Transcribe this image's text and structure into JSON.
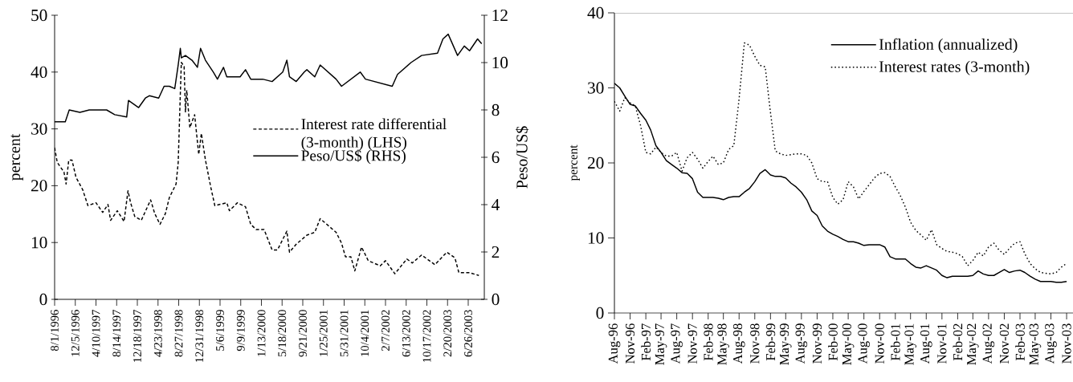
{
  "chart_data": [
    {
      "type": "line",
      "ylabel": "percent",
      "y2label": "Peso/US$",
      "legend": "right",
      "xlim": [
        "1996-08-01",
        "2003-10-02"
      ],
      "ylim": [
        0,
        50
      ],
      "yticks": [
        0,
        10,
        20,
        30,
        40,
        50
      ],
      "y2lim": [
        0,
        12
      ],
      "y2ticks": [
        0,
        2,
        4,
        6,
        8,
        10,
        12
      ],
      "xticks": [
        {
          "value": "1996-08-01",
          "label": "8/1/1996"
        },
        {
          "value": "1996-12-05",
          "label": "12/5/1996"
        },
        {
          "value": "1997-04-10",
          "label": "4/10/1997"
        },
        {
          "value": "1997-08-14",
          "label": "8/14/1997"
        },
        {
          "value": "1997-12-18",
          "label": "12/18/1997"
        },
        {
          "value": "1998-04-23",
          "label": "4/23/1998"
        },
        {
          "value": "1998-08-27",
          "label": "8/27/1998"
        },
        {
          "value": "1998-12-31",
          "label": "12/31/1998"
        },
        {
          "value": "1999-05-06",
          "label": "5/6/1999"
        },
        {
          "value": "1999-09-09",
          "label": "9/9/1999"
        },
        {
          "value": "2000-01-13",
          "label": "1/13/2000"
        },
        {
          "value": "2000-05-18",
          "label": "5/18/2000"
        },
        {
          "value": "2000-09-21",
          "label": "9/21/2000"
        },
        {
          "value": "2001-01-25",
          "label": "1/25/2001"
        },
        {
          "value": "2001-05-31",
          "label": "5/31/2001"
        },
        {
          "value": "2001-10-04",
          "label": "10/4/2001"
        },
        {
          "value": "2002-02-07",
          "label": "2/7/2002"
        },
        {
          "value": "2002-06-13",
          "label": "6/13/2002"
        },
        {
          "value": "2002-10-17",
          "label": "10/17/2002"
        },
        {
          "value": "2003-02-20",
          "label": "2/20/2003"
        },
        {
          "value": "2003-06-26",
          "label": "6/26/2003"
        }
      ],
      "series": [
        {
          "name": "Interest rate differential (3-month) (LHS)",
          "color": "#000000",
          "line_style": "dashed",
          "axis": "y",
          "x": [
            "1996-08-01",
            "1996-08-17",
            "1996-09-27",
            "1996-10-10",
            "1996-10-26",
            "1996-11-15",
            "1996-12-09",
            "1997-01-19",
            "1997-02-20",
            "1997-04-10",
            "1997-05-21",
            "1997-06-22",
            "1997-07-08",
            "1997-08-18",
            "1997-09-28",
            "1997-10-22",
            "1997-11-07",
            "1997-12-02",
            "1998-01-11",
            "1998-03-09",
            "1998-04-03",
            "1998-05-05",
            "1998-06-07",
            "1998-07-01",
            "1998-08-11",
            "1998-08-24",
            "1998-09-04",
            "1998-09-12",
            "1998-09-29",
            "1998-10-07",
            "1998-10-15",
            "1998-11-03",
            "1998-12-02",
            "1998-12-27",
            "1999-01-12",
            "1999-02-06",
            "1999-03-10",
            "1999-04-04",
            "1999-06-16",
            "1999-07-02",
            "1999-08-20",
            "1999-10-08",
            "1999-11-09",
            "1999-12-12",
            "2000-01-29",
            "2000-03-18",
            "2000-04-20",
            "2000-06-16",
            "2000-07-02",
            "2000-08-12",
            "2000-10-16",
            "2000-12-03",
            "2001-01-05",
            "2001-04-12",
            "2001-05-15",
            "2001-06-08",
            "2001-07-11",
            "2001-08-04",
            "2001-09-14",
            "2001-10-25",
            "2002-01-06",
            "2002-02-07",
            "2002-04-05",
            "2002-06-17",
            "2002-07-20",
            "2002-09-15",
            "2002-12-05",
            "2003-02-16",
            "2003-04-06",
            "2003-04-30",
            "2003-07-04",
            "2003-08-30"
          ],
          "values": [
            26.7,
            24.1,
            22.4,
            20.3,
            24.5,
            24.5,
            21.5,
            19.3,
            16.5,
            17.0,
            15.3,
            16.7,
            13.9,
            15.6,
            13.7,
            19.1,
            17.0,
            14.6,
            13.9,
            17.5,
            15.1,
            13.2,
            15.1,
            17.9,
            20.3,
            24.1,
            34.4,
            41.7,
            41.0,
            33.0,
            36.8,
            30.2,
            32.5,
            25.5,
            29.2,
            24.5,
            19.8,
            16.5,
            17.0,
            15.6,
            17.0,
            16.3,
            13.2,
            12.3,
            12.3,
            8.7,
            8.7,
            12.0,
            8.3,
            9.7,
            11.3,
            11.8,
            14.2,
            11.8,
            9.9,
            7.5,
            7.5,
            5.0,
            9.2,
            6.8,
            5.9,
            6.8,
            4.5,
            7.1,
            6.4,
            7.8,
            6.1,
            8.3,
            7.3,
            4.7,
            4.7,
            4.2
          ]
        },
        {
          "name": "Peso/US$ (RHS)",
          "color": "#000000",
          "line_style": "solid",
          "axis": "y2",
          "x": [
            "1996-08-01",
            "1996-10-05",
            "1996-10-29",
            "1997-01-02",
            "1997-02-28",
            "1997-06-14",
            "1997-08-02",
            "1997-10-14",
            "1997-10-25",
            "1997-12-26",
            "1998-02-05",
            "1998-03-01",
            "1998-04-27",
            "1998-05-30",
            "1998-07-01",
            "1998-08-03",
            "1998-08-24",
            "1998-09-06",
            "1998-09-12",
            "1998-10-07",
            "1998-11-16",
            "1998-12-19",
            "1999-01-07",
            "1999-02-06",
            "1999-03-26",
            "1999-04-20",
            "1999-05-27",
            "1999-06-16",
            "1999-09-05",
            "1999-10-08",
            "1999-11-09",
            "2000-01-21",
            "2000-03-18",
            "2000-05-22",
            "2000-06-16",
            "2000-07-02",
            "2000-08-12",
            "2000-09-30",
            "2000-10-16",
            "2000-12-03",
            "2001-01-05",
            "2001-04-12",
            "2001-05-15",
            "2001-09-06",
            "2001-10-08",
            "2002-03-20",
            "2002-04-21",
            "2002-07-12",
            "2002-09-15",
            "2002-12-21",
            "2003-01-23",
            "2003-02-24",
            "2003-04-22",
            "2003-06-02",
            "2003-07-04",
            "2003-08-22",
            "2003-09-16"
          ],
          "values": [
            7.5,
            7.5,
            8.0,
            7.9,
            8.0,
            8.0,
            7.8,
            7.7,
            8.4,
            8.1,
            8.5,
            8.6,
            8.5,
            9.0,
            9.0,
            8.9,
            9.9,
            10.6,
            10.2,
            10.3,
            10.1,
            9.8,
            10.6,
            10.1,
            9.6,
            9.3,
            9.8,
            9.4,
            9.4,
            9.7,
            9.3,
            9.3,
            9.2,
            9.6,
            10.1,
            9.4,
            9.2,
            9.6,
            9.7,
            9.4,
            9.9,
            9.3,
            9.0,
            9.6,
            9.3,
            9.0,
            9.5,
            10.0,
            10.3,
            10.4,
            11.0,
            11.2,
            10.3,
            10.7,
            10.5,
            11.0,
            10.8
          ]
        }
      ]
    },
    {
      "type": "line",
      "ylabel": "percent",
      "legend": "top right",
      "xlim": [
        "1996-08",
        "2004-01"
      ],
      "ylim": [
        0,
        40
      ],
      "yticks": [
        0,
        10,
        20,
        30,
        40
      ],
      "xticks": [
        {
          "value": "1996-08",
          "label": "Aug-96"
        },
        {
          "value": "1996-11",
          "label": "Nov-96"
        },
        {
          "value": "1997-02",
          "label": "Feb-97"
        },
        {
          "value": "1997-05",
          "label": "May-97"
        },
        {
          "value": "1997-08",
          "label": "Aug-97"
        },
        {
          "value": "1997-11",
          "label": "Nov-97"
        },
        {
          "value": "1998-02",
          "label": "Feb-98"
        },
        {
          "value": "1998-05",
          "label": "May-98"
        },
        {
          "value": "1998-08",
          "label": "Aug-98"
        },
        {
          "value": "1998-11",
          "label": "Nov-98"
        },
        {
          "value": "1999-02",
          "label": "Feb-99"
        },
        {
          "value": "1999-05",
          "label": "May-99"
        },
        {
          "value": "1999-08",
          "label": "Aug-99"
        },
        {
          "value": "1999-11",
          "label": "Nov-99"
        },
        {
          "value": "2000-02",
          "label": "Feb-00"
        },
        {
          "value": "2000-05",
          "label": "May-00"
        },
        {
          "value": "2000-08",
          "label": "Aug-00"
        },
        {
          "value": "2000-11",
          "label": "Nov-00"
        },
        {
          "value": "2001-02",
          "label": "Feb-01"
        },
        {
          "value": "2001-05",
          "label": "May-01"
        },
        {
          "value": "2001-08",
          "label": "Aug-01"
        },
        {
          "value": "2001-11",
          "label": "Nov-01"
        },
        {
          "value": "2002-02",
          "label": "Feb-02"
        },
        {
          "value": "2002-05",
          "label": "May-02"
        },
        {
          "value": "2002-08",
          "label": "Aug-02"
        },
        {
          "value": "2002-11",
          "label": "Nov-02"
        },
        {
          "value": "2003-02",
          "label": "Feb-03"
        },
        {
          "value": "2003-05",
          "label": "May-03"
        },
        {
          "value": "2003-08",
          "label": "Aug-03"
        },
        {
          "value": "2003-11",
          "label": "Nov-03"
        }
      ],
      "x": [
        "1996-08",
        "1996-09",
        "1996-10",
        "1996-11",
        "1996-12",
        "1997-01",
        "1997-02",
        "1997-03",
        "1997-04",
        "1997-05",
        "1997-06",
        "1997-07",
        "1997-08",
        "1997-09",
        "1997-10",
        "1997-11",
        "1997-12",
        "1998-01",
        "1998-02",
        "1998-03",
        "1998-04",
        "1998-05",
        "1998-06",
        "1998-07",
        "1998-08",
        "1998-09",
        "1998-10",
        "1998-11",
        "1998-12",
        "1999-01",
        "1999-02",
        "1999-03",
        "1999-04",
        "1999-05",
        "1999-06",
        "1999-07",
        "1999-08",
        "1999-09",
        "1999-10",
        "1999-11",
        "1999-12",
        "2000-01",
        "2000-02",
        "2000-03",
        "2000-04",
        "2000-05",
        "2000-06",
        "2000-07",
        "2000-08",
        "2000-09",
        "2000-10",
        "2000-11",
        "2000-12",
        "2001-01",
        "2001-02",
        "2001-03",
        "2001-04",
        "2001-05",
        "2001-06",
        "2001-07",
        "2001-08",
        "2001-09",
        "2001-10",
        "2001-11",
        "2001-12",
        "2002-01",
        "2002-02",
        "2002-03",
        "2002-04",
        "2002-05",
        "2002-06",
        "2002-07",
        "2002-08",
        "2002-09",
        "2002-10",
        "2002-11",
        "2002-12",
        "2003-01",
        "2003-02",
        "2003-03",
        "2003-04",
        "2003-05",
        "2003-06",
        "2003-07",
        "2003-08",
        "2003-09",
        "2003-10",
        "2003-11"
      ],
      "series": [
        {
          "name": "Inflation (annualized)",
          "color": "#000000",
          "line_style": "solid",
          "values": [
            30.6,
            30.0,
            28.9,
            27.8,
            27.6,
            26.6,
            25.7,
            24.4,
            22.3,
            21.4,
            20.3,
            19.8,
            19.3,
            18.7,
            18.6,
            17.9,
            16.1,
            15.4,
            15.4,
            15.4,
            15.3,
            15.1,
            15.4,
            15.5,
            15.5,
            16.1,
            16.6,
            17.5,
            18.6,
            19.1,
            18.4,
            18.2,
            18.2,
            18.0,
            17.3,
            16.8,
            16.1,
            15.1,
            13.6,
            13.0,
            11.6,
            10.9,
            10.5,
            10.2,
            9.8,
            9.5,
            9.5,
            9.3,
            9.0,
            9.1,
            9.1,
            9.1,
            8.8,
            7.5,
            7.2,
            7.2,
            7.2,
            6.6,
            6.1,
            6.0,
            6.3,
            6.0,
            5.7,
            5.0,
            4.7,
            4.9,
            4.9,
            4.9,
            4.9,
            5.0,
            5.6,
            5.2,
            5.0,
            5.0,
            5.4,
            5.8,
            5.4,
            5.6,
            5.7,
            5.4,
            4.9,
            4.5,
            4.2,
            4.2,
            4.2,
            4.1,
            4.1,
            4.2
          ]
        },
        {
          "name": "Interest rates (3-month)",
          "color": "#000000",
          "line_style": "dotted",
          "values": [
            28.2,
            26.9,
            28.7,
            28.0,
            27.6,
            25.0,
            21.4,
            21.2,
            22.1,
            21.4,
            20.9,
            20.9,
            21.4,
            18.9,
            20.7,
            21.4,
            20.5,
            19.3,
            20.2,
            20.9,
            19.8,
            20.0,
            21.8,
            22.3,
            28.5,
            36.0,
            35.7,
            34.2,
            33.0,
            32.8,
            26.7,
            21.6,
            21.2,
            21.0,
            21.1,
            21.2,
            21.2,
            21.0,
            20.0,
            17.9,
            17.5,
            17.5,
            15.4,
            14.5,
            15.1,
            17.5,
            16.8,
            15.2,
            16.2,
            17.1,
            18.0,
            18.6,
            18.7,
            18.2,
            16.8,
            15.7,
            14.1,
            12.1,
            11.0,
            10.4,
            9.7,
            11.1,
            9.1,
            8.6,
            8.2,
            8.1,
            7.9,
            7.5,
            6.3,
            7.0,
            8.1,
            7.6,
            8.8,
            9.3,
            8.4,
            7.8,
            8.6,
            9.3,
            9.5,
            7.9,
            6.6,
            5.9,
            5.4,
            5.3,
            5.2,
            5.4,
            6.1,
            6.6
          ]
        }
      ]
    }
  ]
}
